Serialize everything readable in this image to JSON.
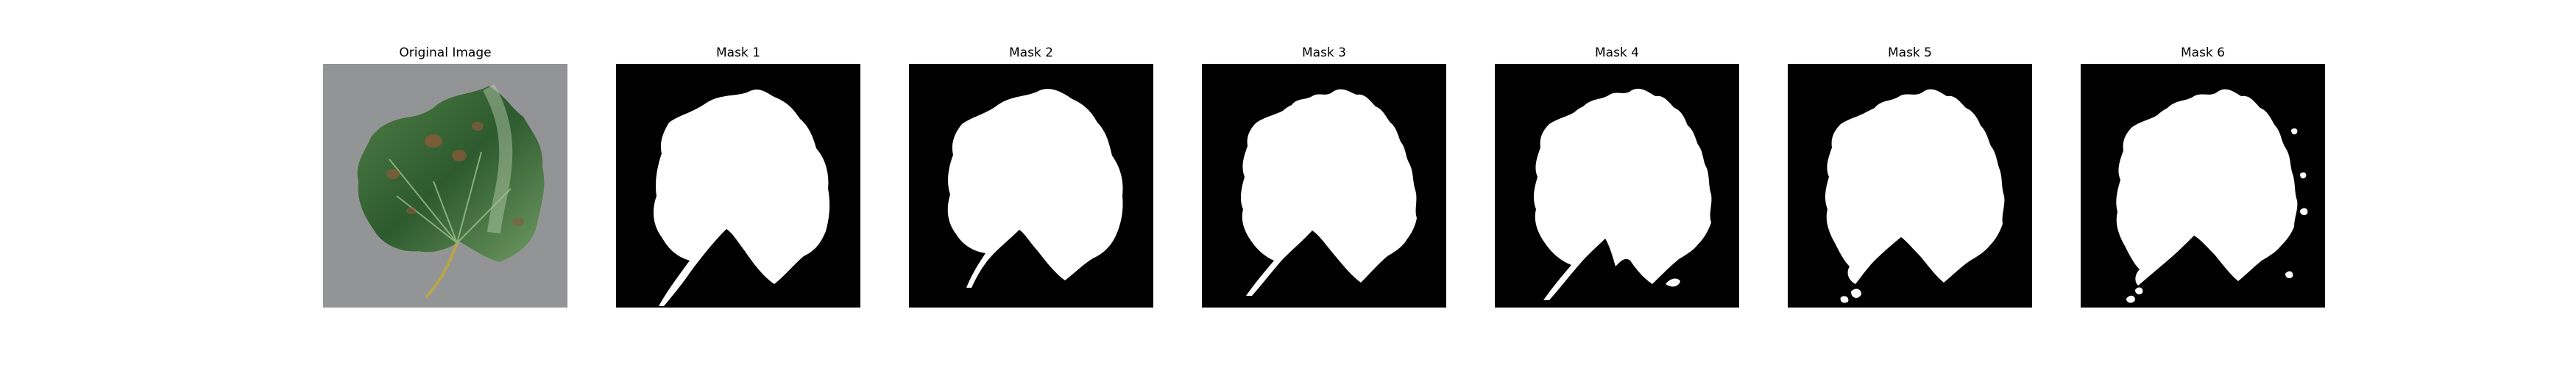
{
  "panels": [
    {
      "title": "Original Image",
      "kind": "photo",
      "icon": "leaf-photo"
    },
    {
      "title": "Mask 1",
      "kind": "mask",
      "icon": "leaf-mask"
    },
    {
      "title": "Mask 2",
      "kind": "mask",
      "icon": "leaf-mask"
    },
    {
      "title": "Mask 3",
      "kind": "mask",
      "icon": "leaf-mask"
    },
    {
      "title": "Mask 4",
      "kind": "mask",
      "icon": "leaf-mask"
    },
    {
      "title": "Mask 5",
      "kind": "mask",
      "icon": "leaf-mask"
    },
    {
      "title": "Mask 6",
      "kind": "mask",
      "icon": "leaf-mask"
    }
  ],
  "colors": {
    "mask_background": "#000000",
    "mask_foreground": "#ffffff",
    "photo_background": "#8f9192",
    "leaf_dark": "#2d5a2e",
    "leaf_light": "#6f9a62",
    "lesion": "#8a5a3a",
    "stem": "#b8a64a"
  }
}
